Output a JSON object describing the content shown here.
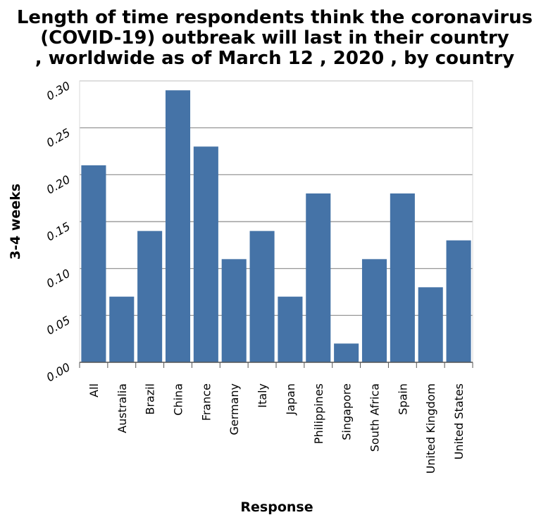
{
  "chart_data": {
    "type": "bar",
    "title_lines": [
      "Length of time respondents think the coronavirus",
      "(COVID-19) outbreak will last in their country",
      ", worldwide as of March 12 , 2020 , by country"
    ],
    "xlabel": "Response",
    "ylabel": "3-4 weeks",
    "ylim": [
      0,
      0.3
    ],
    "yticks": [
      "0.00",
      "0.05",
      "0.10",
      "0.15",
      "0.20",
      "0.25",
      "0.30"
    ],
    "grid": true,
    "bar_color": "#4573a7",
    "categories": [
      "All",
      "Australia",
      "Brazil",
      "China",
      "France",
      "Germany",
      "Italy",
      "Japan",
      "Philippines",
      "Singapore",
      "South Africa",
      "Spain",
      "United Kingdom",
      "United States"
    ],
    "values": [
      0.21,
      0.07,
      0.14,
      0.29,
      0.23,
      0.11,
      0.14,
      0.07,
      0.18,
      0.02,
      0.11,
      0.18,
      0.08,
      0.13
    ]
  }
}
